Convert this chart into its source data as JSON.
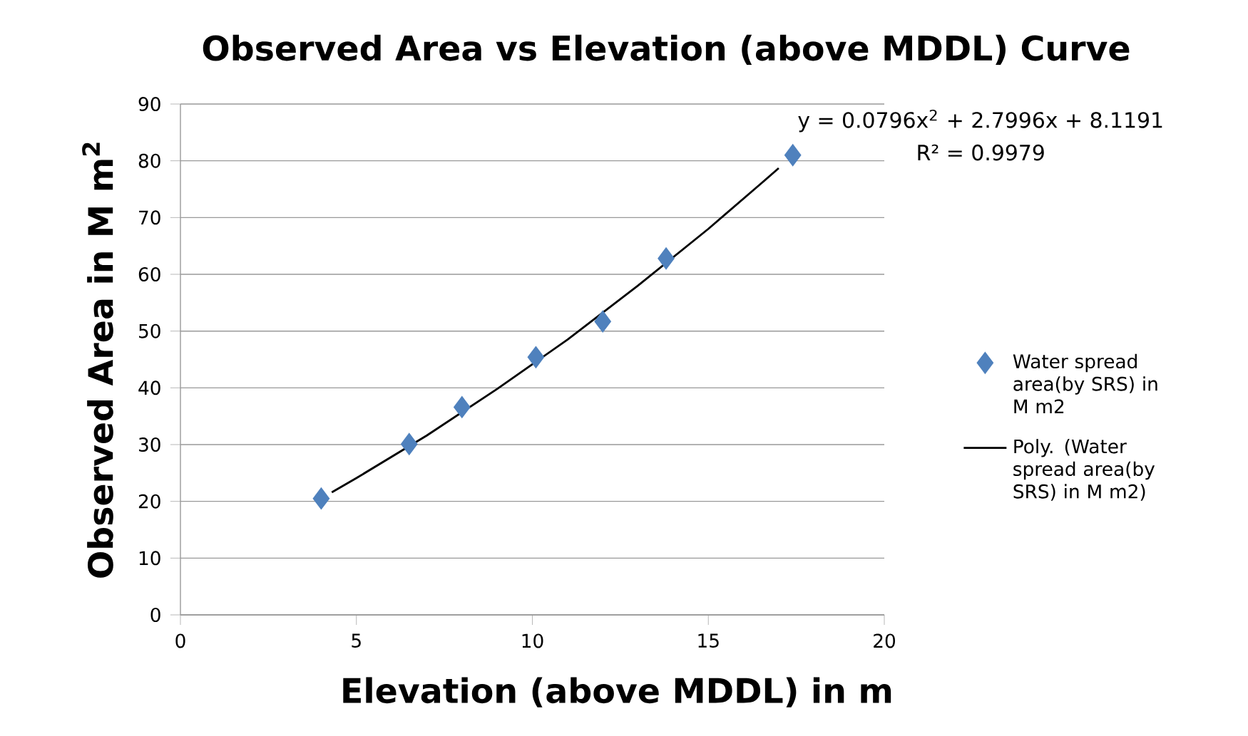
{
  "chart_data": {
    "type": "scatter",
    "title": "Observed Area vs Elevation (above MDDL) Curve",
    "xlabel": "Elevation (above MDDL) in m",
    "ylabel": "Observed Area in M m$^{2}$",
    "xlim": [
      0,
      20
    ],
    "xticks": [
      0,
      5,
      10,
      15,
      20
    ],
    "ylim": [
      0,
      90
    ],
    "yticks": [
      0,
      10,
      20,
      30,
      40,
      50,
      60,
      70,
      80,
      90
    ],
    "grid": "y",
    "legend": "right",
    "series": [
      {
        "name": "Water spread area(by SRS) in  M m2",
        "color": "#4f81bd",
        "marker": "diamond",
        "x": [
          4.0,
          6.5,
          8.0,
          10.1,
          12.0,
          13.8,
          17.4
        ],
        "values": [
          20.5,
          30.1,
          36.6,
          45.4,
          51.7,
          62.8,
          81.0
        ]
      },
      {
        "name": "Poly. (Water spread area(by SRS) in  M m2)",
        "type": "line",
        "color": "#000000",
        "marker": "none",
        "line_style": "solid",
        "x": [
          4.3,
          5,
          7,
          9,
          11,
          13,
          15,
          16.5,
          17.0
        ],
        "values": [
          21.6,
          24.1,
          31.6,
          39.8,
          48.5,
          58.0,
          68.0,
          76.0,
          78.7
        ]
      }
    ],
    "annotations": [
      "y = 0.0796x$^{2}$ + 2.7996x + 8.1191",
      "R² = 0.9979"
    ]
  }
}
